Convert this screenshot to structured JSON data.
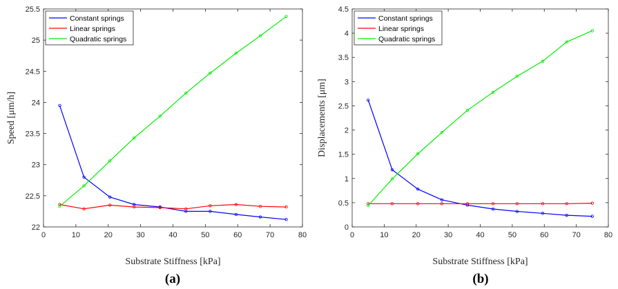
{
  "chart_data": [
    {
      "type": "line",
      "caption": "(a)",
      "xlabel": "Substrate Stiffness [kPa]",
      "ylabel": "Speed [μm/h]",
      "xlim": [
        0,
        80
      ],
      "ylim": [
        22,
        25.5
      ],
      "xticks": [
        "0",
        "10",
        "20",
        "30",
        "40",
        "50",
        "60",
        "70",
        "80"
      ],
      "yticks": [
        "22",
        "22.5",
        "23",
        "23.5",
        "24",
        "24.5",
        "25",
        "25.5"
      ],
      "x": [
        5,
        12.5,
        20.5,
        28,
        36,
        44,
        51.5,
        59.5,
        67,
        75
      ],
      "series": [
        {
          "name": "Constant springs",
          "color": "#0000ff",
          "values": [
            23.95,
            22.8,
            22.48,
            22.36,
            22.32,
            22.25,
            22.25,
            22.2,
            22.16,
            22.12
          ]
        },
        {
          "name": "Linear springs",
          "color": "#ff0000",
          "values": [
            22.36,
            22.29,
            22.35,
            22.32,
            22.31,
            22.29,
            22.34,
            22.36,
            22.33,
            22.32
          ]
        },
        {
          "name": "Quadratic springs",
          "color": "#00ee00",
          "values": [
            22.33,
            22.66,
            23.06,
            23.43,
            23.78,
            24.15,
            24.47,
            24.79,
            25.07,
            25.38
          ]
        }
      ],
      "legend": "top-left",
      "grid": false
    },
    {
      "type": "line",
      "caption": "(b)",
      "xlabel": "Substrate Stiffness [kPa]",
      "ylabel": "Displacements [μm]",
      "xlim": [
        0,
        80
      ],
      "ylim": [
        0,
        4.5
      ],
      "xticks": [
        "0",
        "10",
        "20",
        "30",
        "40",
        "50",
        "60",
        "70",
        "80"
      ],
      "yticks": [
        "0",
        "0.5",
        "1",
        "1.5",
        "2",
        "2.5",
        "3",
        "3.5",
        "4",
        "4.5"
      ],
      "x": [
        5,
        12.5,
        20.5,
        28,
        36,
        44,
        51.5,
        59.5,
        67,
        75
      ],
      "series": [
        {
          "name": "Constant springs",
          "color": "#0000ff",
          "values": [
            2.62,
            1.18,
            0.78,
            0.56,
            0.45,
            0.37,
            0.32,
            0.28,
            0.24,
            0.22
          ]
        },
        {
          "name": "Linear springs",
          "color": "#ff0000",
          "values": [
            0.48,
            0.48,
            0.48,
            0.48,
            0.48,
            0.48,
            0.48,
            0.48,
            0.48,
            0.49
          ]
        },
        {
          "name": "Quadratic springs",
          "color": "#00ee00",
          "values": [
            0.44,
            0.99,
            1.51,
            1.95,
            2.41,
            2.78,
            3.11,
            3.42,
            3.82,
            4.05
          ]
        }
      ],
      "legend": "top-left",
      "grid": false
    }
  ]
}
